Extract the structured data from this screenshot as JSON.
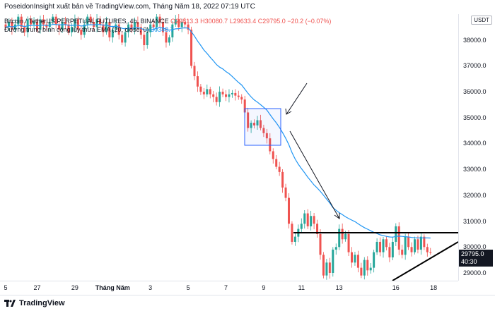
{
  "header": {
    "publisher_text": "PoseidonInsight xuất bản về TradingView.com, Tháng Năm 18, 2022 07:19 UTC"
  },
  "legend": {
    "symbol": "Bitcoin / TetherUS PERPETUAL FUTURES, 4h, BINANCE",
    "open": "O29813.3",
    "high": "H30080.7",
    "low": "L29633.4",
    "close": "C29795.0",
    "change": "−20.2 (−0.07%)",
    "ema_label": "Đường trung bình cộng lũy thừa EMA (20, close, 0)",
    "ema_value": "30348.7"
  },
  "price_axis": {
    "currency": "USDT",
    "ticks": [
      "38000.0",
      "37000.0",
      "36000.0",
      "35000.0",
      "34000.0",
      "33000.0",
      "32000.0",
      "31000.0",
      "30000.0",
      "29000.0"
    ],
    "last_price": "29795.0",
    "countdown": "40:30"
  },
  "time_axis": {
    "ticks": [
      "5",
      "27",
      "29",
      "Tháng Năm",
      "3",
      "5",
      "7",
      "9",
      "11",
      "13",
      "16",
      "18"
    ]
  },
  "footer": {
    "brand": "TradingView"
  },
  "colors": {
    "up": "#26a69a",
    "down": "#ef5350",
    "ema": "#2196f3",
    "box": "#2962ff",
    "lines": "#000000"
  },
  "chart_data": {
    "type": "candlestick",
    "title": "Bitcoin / TetherUS PERPETUAL FUTURES, 4h, BINANCE",
    "ylim": [
      28700,
      39000
    ],
    "price_ticks": [
      38000,
      37000,
      36000,
      35000,
      34000,
      33000,
      32000,
      31000,
      30000,
      29000
    ],
    "time_ticks": [
      {
        "label": "5",
        "bar": 0
      },
      {
        "label": "27",
        "bar": 10
      },
      {
        "label": "29",
        "bar": 22
      },
      {
        "label": "Tháng Năm",
        "bar": 34
      },
      {
        "label": "3",
        "bar": 46
      },
      {
        "label": "5",
        "bar": 58
      },
      {
        "label": "7",
        "bar": 70
      },
      {
        "label": "9",
        "bar": 82
      },
      {
        "label": "11",
        "bar": 94
      },
      {
        "label": "13",
        "bar": 106
      },
      {
        "label": "16",
        "bar": 124
      },
      {
        "label": "18",
        "bar": 136
      }
    ],
    "closes": [
      38500,
      38700,
      38400,
      38600,
      38900,
      38500,
      38300,
      38800,
      38600,
      38700,
      38400,
      38800,
      38600,
      38500,
      38700,
      38900,
      38600,
      38400,
      38700,
      38600,
      38300,
      38500,
      38800,
      38400,
      38200,
      38600,
      38900,
      38700,
      38500,
      38800,
      38600,
      38300,
      38700,
      38100,
      38400,
      38600,
      38200,
      37900,
      38300,
      38600,
      38400,
      38700,
      38500,
      38200,
      37800,
      38300,
      38600,
      38500,
      38900,
      38700,
      38300,
      37900,
      38100,
      38600,
      38800,
      38500,
      38700,
      38600,
      38400,
      37000,
      36600,
      36200,
      36000,
      35900,
      36100,
      35900,
      35800,
      35600,
      36000,
      35900,
      35800,
      35900,
      35950,
      35850,
      35800,
      35700,
      35200,
      34600,
      34800,
      34700,
      34900,
      34600,
      34400,
      34200,
      33700,
      33400,
      33100,
      32900,
      32300,
      31900,
      30900,
      30200,
      30400,
      30700,
      30900,
      31300,
      30800,
      31200,
      30900,
      30500,
      29700,
      28900,
      29400,
      29000,
      29900,
      30000,
      30700,
      30300,
      30500,
      29800,
      29400,
      29700,
      29200,
      28900,
      29500,
      29100,
      29200,
      29800,
      30200,
      29800,
      30300,
      30000,
      29600,
      30200,
      30800,
      29900,
      29700,
      30400,
      30000,
      29800,
      30300,
      29900,
      30400,
      30000,
      29800,
      29795
    ],
    "ema20": [
      38500,
      38520,
      38510,
      38520,
      38560,
      38550,
      38520,
      38550,
      38560,
      38570,
      38550,
      38570,
      38570,
      38560,
      38570,
      38600,
      38600,
      38580,
      38590,
      38590,
      38570,
      38560,
      38580,
      38570,
      38540,
      38550,
      38580,
      38590,
      38580,
      38600,
      38600,
      38570,
      38580,
      38530,
      38520,
      38530,
      38500,
      38450,
      38430,
      38450,
      38450,
      38470,
      38470,
      38450,
      38390,
      38380,
      38400,
      38410,
      38450,
      38480,
      38460,
      38410,
      38380,
      38400,
      38430,
      38440,
      38460,
      38470,
      38460,
      38320,
      38150,
      37960,
      37790,
      37610,
      37480,
      37330,
      37200,
      37050,
      36950,
      36880,
      36780,
      36700,
      36590,
      36470,
      36360,
      36260,
      36100,
      35940,
      35800,
      35680,
      35600,
      35500,
      35400,
      35290,
      35120,
      34950,
      34800,
      34620,
      34420,
      34200,
      33950,
      33650,
      33400,
      33200,
      33030,
      32870,
      32700,
      32550,
      32400,
      32280,
      32150,
      32000,
      31850,
      31700,
      31520,
      31420,
      31330,
      31250,
      31170,
      31100,
      31040,
      30980,
      30900,
      30820,
      30750,
      30690,
      30630,
      30570,
      30520,
      30470,
      30440,
      30410,
      30390,
      30380,
      30410,
      30420,
      30410,
      30400,
      30390,
      30370,
      30360,
      30350,
      30350,
      30350,
      30350,
      30349
    ]
  }
}
